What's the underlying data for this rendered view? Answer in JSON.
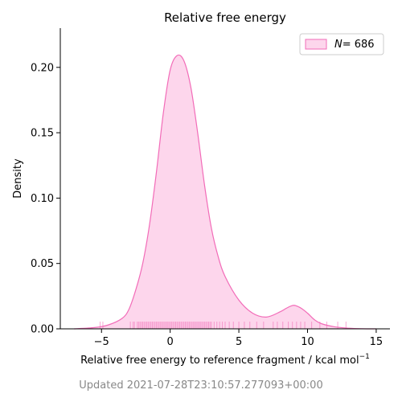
{
  "chart_data": {
    "type": "area",
    "title": "Relative free energy",
    "xlabel": "Relative free energy to reference fragment / kcal mol",
    "xlabel_superscript": "−1",
    "ylabel": "Density",
    "xlim": [
      -8,
      16
    ],
    "ylim": [
      0,
      0.23
    ],
    "x_ticks": [
      -5,
      0,
      5,
      10,
      15
    ],
    "x_tick_labels": [
      "−5",
      "0",
      "5",
      "10",
      "15"
    ],
    "y_ticks": [
      0.0,
      0.05,
      0.1,
      0.15,
      0.2
    ],
    "y_tick_labels": [
      "0.00",
      "0.05",
      "0.10",
      "0.15",
      "0.20"
    ],
    "grid": false,
    "legend": {
      "position": "top-right",
      "label_symbol": "N",
      "label_value": "= 686"
    },
    "series": [
      {
        "name": "N = 686",
        "color": "#f26cb8",
        "fill": "#fdd6ec",
        "x": [
          -7,
          -5.5,
          -4.5,
          -3.5,
          -3,
          -2.5,
          -2,
          -1.5,
          -1,
          -0.5,
          0,
          0.5,
          1,
          1.5,
          2,
          2.5,
          3,
          3.5,
          4,
          5,
          6,
          7,
          8,
          8.5,
          9,
          9.5,
          10,
          10.5,
          11,
          12,
          13,
          14,
          15
        ],
        "y": [
          0.0,
          0.001,
          0.003,
          0.008,
          0.015,
          0.03,
          0.05,
          0.08,
          0.12,
          0.165,
          0.198,
          0.209,
          0.205,
          0.185,
          0.15,
          0.11,
          0.077,
          0.055,
          0.04,
          0.022,
          0.012,
          0.009,
          0.013,
          0.016,
          0.018,
          0.016,
          0.012,
          0.007,
          0.004,
          0.0015,
          0.0005,
          0.0001,
          0.0
        ]
      }
    ],
    "rug": [
      -5.1,
      -4.9,
      -2.9,
      -2.7,
      -2.6,
      -2.4,
      -2.3,
      -2.2,
      -2.1,
      -2.0,
      -1.9,
      -1.8,
      -1.7,
      -1.6,
      -1.5,
      -1.4,
      -1.3,
      -1.2,
      -1.1,
      -1.0,
      -0.9,
      -0.8,
      -0.7,
      -0.6,
      -0.5,
      -0.4,
      -0.3,
      -0.2,
      -0.1,
      0.0,
      0.1,
      0.2,
      0.3,
      0.4,
      0.5,
      0.6,
      0.7,
      0.8,
      0.9,
      1.0,
      1.1,
      1.2,
      1.3,
      1.4,
      1.5,
      1.6,
      1.7,
      1.8,
      1.9,
      2.0,
      2.1,
      2.2,
      2.3,
      2.4,
      2.5,
      2.6,
      2.7,
      2.8,
      2.9,
      3.0,
      3.2,
      3.4,
      3.6,
      3.8,
      4.0,
      4.3,
      4.6,
      5.0,
      5.4,
      5.8,
      6.3,
      6.8,
      7.5,
      7.8,
      8.2,
      8.6,
      8.9,
      9.2,
      9.5,
      9.8,
      10.3,
      10.9,
      11.4,
      12.2,
      12.8
    ]
  },
  "footer": "Updated 2021-07-28T23:10:57.277093+00:00"
}
